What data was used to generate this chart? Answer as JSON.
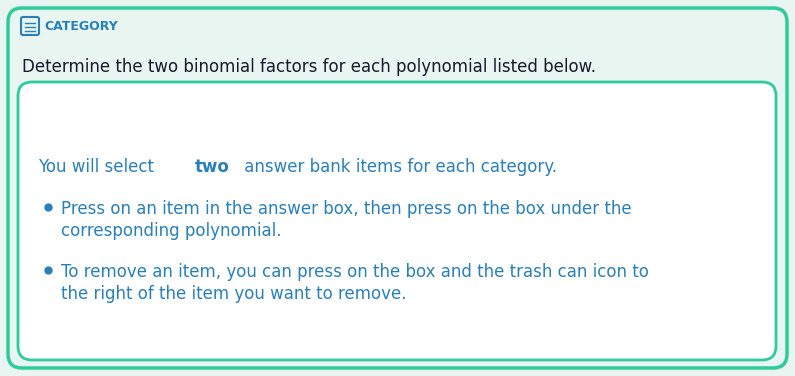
{
  "bg_color": "#e8f5f0",
  "outer_border_color": "#2ecc9a",
  "inner_box_bg": "#ffffff",
  "inner_box_border_color": "#2ecc9a",
  "header_icon_color": "#2980b9",
  "header_text": "CATEGORY",
  "header_text_color": "#2980b9",
  "subtitle_text": "Determine the two binomial factors for each polynomial listed below.",
  "subtitle_color": "#1a1a2e",
  "body_text_color": "#2980b9",
  "body_intro": "You will select ",
  "body_bold": "two",
  "body_intro_end": " answer bank items for each category.",
  "bullet1_line1": "Press on an item in the answer box, then press on the box under the",
  "bullet1_line2": "corresponding polynomial.",
  "bullet2_line1": "To remove an item, you can press on the box and the trash can icon to",
  "bullet2_line2": "the right of the item you want to remove.",
  "bullet_color": "#2980b9",
  "figsize": [
    7.95,
    3.76
  ],
  "dpi": 100
}
